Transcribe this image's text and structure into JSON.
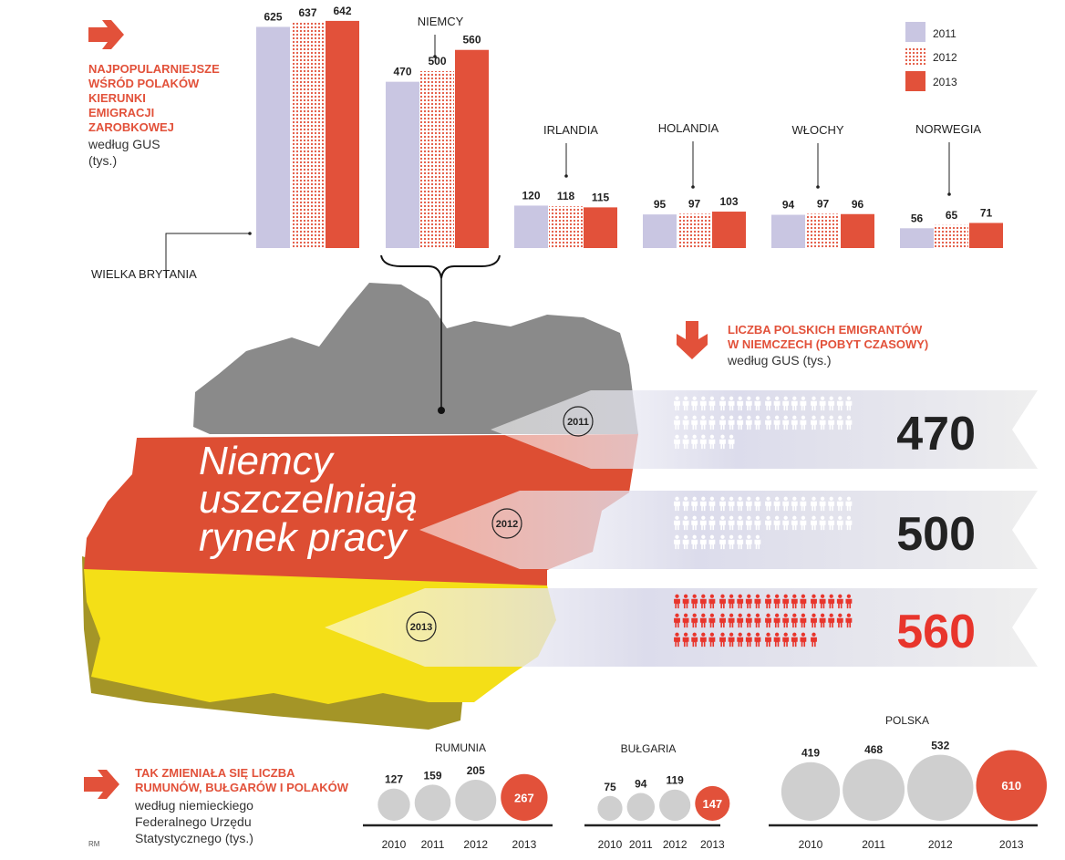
{
  "colors": {
    "y2011": "#c9c6e2",
    "y2012": "#e2513a",
    "y2013": "#e2513a",
    "accent_red": "#e2513a",
    "circle_grey": "#cfcfcf",
    "map_grey": "#8a8a8a",
    "map_red": "#dd4e33",
    "map_yellow": "#f4df17",
    "big_red": "#e8352c",
    "dark_text": "#222222"
  },
  "legend": [
    "2011",
    "2012",
    "2013"
  ],
  "intro": {
    "title_lines": [
      "NAJPOPULARNIEJSZE",
      "WŚRÓD POLAKÓW",
      "KIERUNKI",
      "EMIGRACJI",
      "ZAROBKOWEJ"
    ],
    "subtitle_lines": [
      "według GUS",
      "(tys.)"
    ]
  },
  "chart_data": [
    {
      "type": "bar",
      "categories": [
        "WIELKA BRYTANIA",
        "NIEMCY",
        "IRLANDIA",
        "HOLANDIA",
        "WŁOCHY",
        "NORWEGIA"
      ],
      "series": [
        {
          "name": "2011",
          "values": [
            625,
            470,
            120,
            95,
            94,
            56
          ]
        },
        {
          "name": "2012",
          "values": [
            637,
            500,
            118,
            97,
            97,
            65
          ]
        },
        {
          "name": "2013",
          "values": [
            642,
            560,
            115,
            103,
            96,
            71
          ]
        }
      ],
      "value_labels": [
        [
          "625",
          "637",
          "642"
        ],
        [
          "470",
          "500",
          "560"
        ],
        [
          "120",
          "118",
          "115"
        ],
        [
          "95",
          "97",
          "103"
        ],
        [
          "94",
          "97",
          "96"
        ],
        [
          "56",
          "65",
          "71"
        ]
      ],
      "title": "",
      "xlabel": "",
      "ylabel": ""
    },
    {
      "type": "bar",
      "categories": [
        "2011",
        "2012",
        "2013"
      ],
      "values": [
        470,
        500,
        560
      ],
      "value_labels": [
        "470",
        "500",
        "560"
      ]
    },
    {
      "type": "scatter",
      "groups": [
        {
          "name": "RUMUNIA",
          "x": [
            "2010",
            "2011",
            "2012",
            "2013"
          ],
          "values": [
            127,
            159,
            205,
            267
          ],
          "value_labels": [
            "127",
            "159",
            "205",
            "267"
          ]
        },
        {
          "name": "BUŁGARIA",
          "x": [
            "2010",
            "2011",
            "2012",
            "2013"
          ],
          "values": [
            75,
            94,
            119,
            147
          ],
          "value_labels": [
            "75",
            "94",
            "119",
            "147"
          ]
        },
        {
          "name": "POLSKA",
          "x": [
            "2010",
            "2011",
            "2012",
            "2013"
          ],
          "values": [
            419,
            468,
            532,
            610
          ],
          "value_labels": [
            "419",
            "468",
            "532",
            "610"
          ]
        }
      ]
    }
  ],
  "headline_lines": [
    "Niemcy",
    "uszczelniają",
    "rynek pracy"
  ],
  "germany": {
    "title_lines": [
      "LICZBA POLSKICH EMIGRANTÓW",
      "W NIEMCZECH (POBYT CZASOWY)"
    ],
    "subtitle": "według GUS (tys.)"
  },
  "bottom": {
    "title_lines": [
      "TAK ZMIENIAŁA SIĘ LICZBA",
      "RUMUNÓW, BUŁGARÓW I POLAKÓW"
    ],
    "subtitle_lines": [
      "według niemieckiego",
      "Federalnego Urzędu",
      "Statystycznego (tys.)"
    ]
  },
  "credit": "RM"
}
